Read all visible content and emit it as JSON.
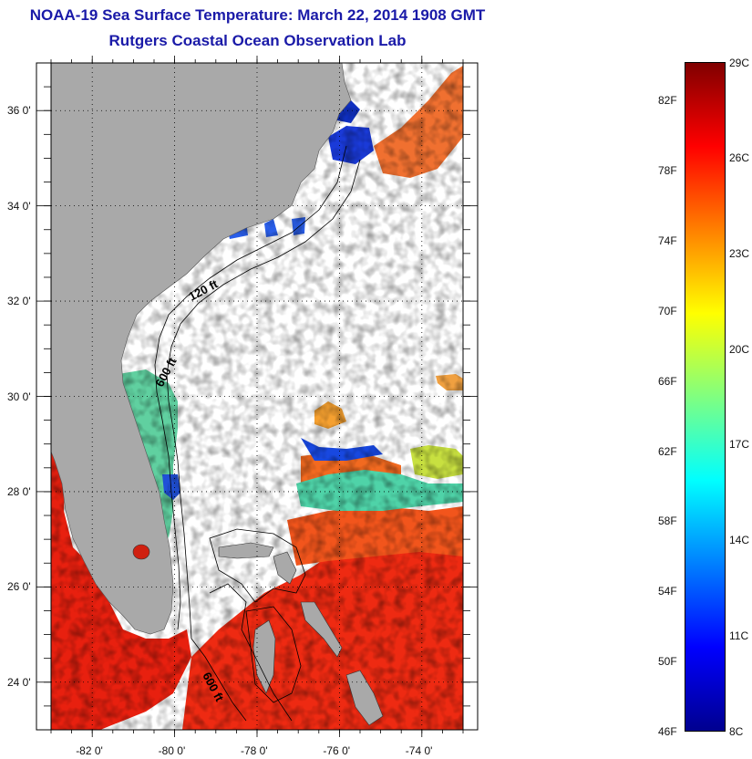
{
  "header": {
    "title": "NOAA-19 Sea Surface Temperature:  March 22, 2014 1908 GMT",
    "subtitle": "Rutgers Coastal Ocean Observation Lab"
  },
  "map": {
    "lon_range": [
      -83,
      -73
    ],
    "lat_range": [
      23,
      37
    ],
    "lon_ticks": [
      {
        "value": -82,
        "label": "-82 0'"
      },
      {
        "value": -80,
        "label": "-80 0'"
      },
      {
        "value": -78,
        "label": "-78 0'"
      },
      {
        "value": -76,
        "label": "-76 0'"
      },
      {
        "value": -74,
        "label": "-74 0'"
      }
    ],
    "lat_ticks": [
      {
        "value": 24,
        "label": "24 0'"
      },
      {
        "value": 26,
        "label": "26 0'"
      },
      {
        "value": 28,
        "label": "28 0'"
      },
      {
        "value": 30,
        "label": "30 0'"
      },
      {
        "value": 32,
        "label": "32 0'"
      },
      {
        "value": 34,
        "label": "34 0'"
      },
      {
        "value": 36,
        "label": "36 0'"
      }
    ],
    "contours": [
      "120 ft",
      "600 ft",
      "600 ft"
    ],
    "colors": {
      "land": "#a9a9a9",
      "ocean_nodata": "#ffffff",
      "contour": "#000000"
    }
  },
  "colorbar": {
    "stops": [
      "#00008f",
      "#0000ff",
      "#0080ff",
      "#00ffff",
      "#80ff80",
      "#ffff00",
      "#ff8000",
      "#ff0000",
      "#800000"
    ],
    "fahrenheit": [
      {
        "value": 46,
        "label": "46F"
      },
      {
        "value": 50,
        "label": "50F"
      },
      {
        "value": 54,
        "label": "54F"
      },
      {
        "value": 58,
        "label": "58F"
      },
      {
        "value": 62,
        "label": "62F"
      },
      {
        "value": 66,
        "label": "66F"
      },
      {
        "value": 70,
        "label": "70F"
      },
      {
        "value": 74,
        "label": "74F"
      },
      {
        "value": 78,
        "label": "78F"
      },
      {
        "value": 82,
        "label": "82F"
      }
    ],
    "celsius": [
      {
        "value": 8,
        "label": "8C"
      },
      {
        "value": 11,
        "label": "11C"
      },
      {
        "value": 14,
        "label": "14C"
      },
      {
        "value": 17,
        "label": "17C"
      },
      {
        "value": 20,
        "label": "20C"
      },
      {
        "value": 23,
        "label": "23C"
      },
      {
        "value": 26,
        "label": "26C"
      },
      {
        "value": 29,
        "label": "29C"
      }
    ]
  }
}
